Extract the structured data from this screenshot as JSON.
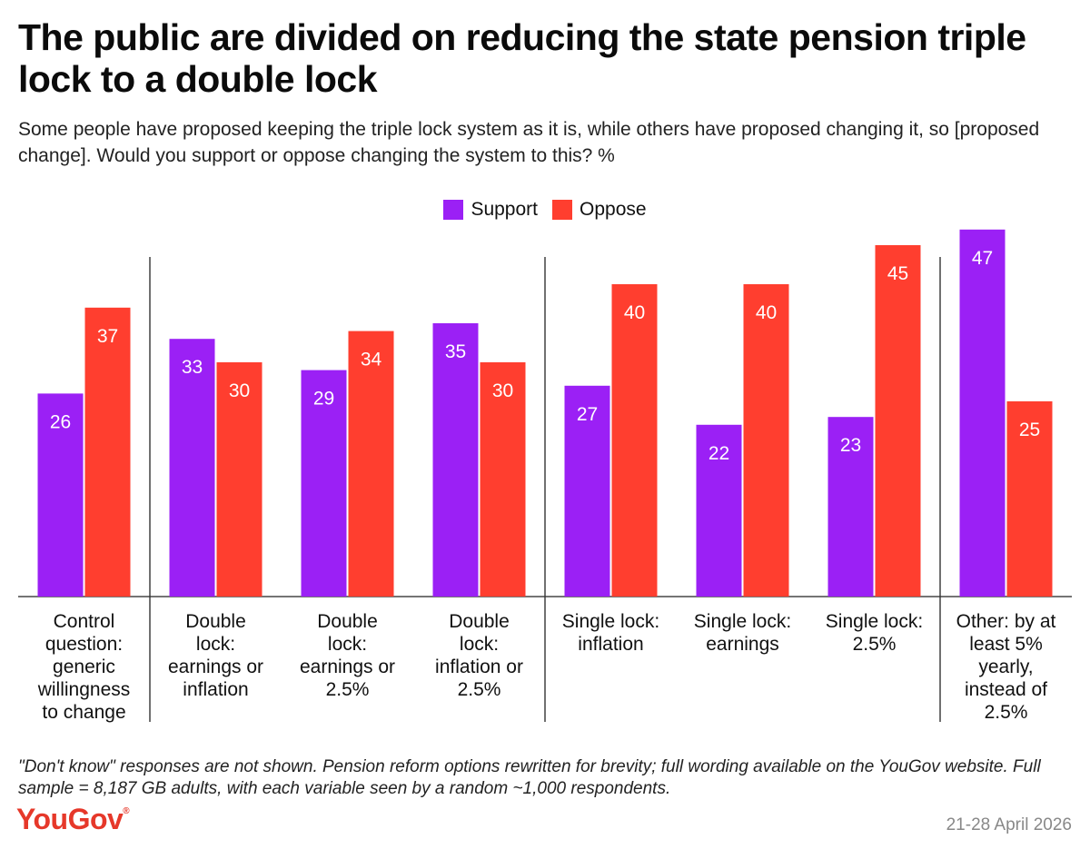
{
  "title": "The public are divided on reducing the state pension triple lock to a double lock",
  "subtitle": "Some people have proposed keeping the triple lock system as it is, while others have proposed changing it, so [proposed change]. Would you support or oppose changing the system to this? %",
  "footnote": "\"Don't know\" responses are not shown. Pension reform options rewritten for brevity; full wording available on the YouGov website. Full sample = 8,187 GB adults, with each variable seen by a random ~1,000 respondents.",
  "brand": "YouGov",
  "date": "21-28 April 2026",
  "colors": {
    "support": "#9b20f5",
    "oppose": "#ff3e2f"
  },
  "chart_data": {
    "type": "bar",
    "categories": [
      [
        "Control",
        "question:",
        "generic",
        "willingness",
        "to change"
      ],
      [
        "Double",
        "lock:",
        "earnings or",
        "inflation"
      ],
      [
        "Double",
        "lock:",
        "earnings or",
        "2.5%"
      ],
      [
        "Double",
        "lock:",
        "inflation or",
        "2.5%"
      ],
      [
        "Single lock:",
        "inflation"
      ],
      [
        "Single lock:",
        "earnings"
      ],
      [
        "Single lock:",
        "2.5%"
      ],
      [
        "Other: by at",
        "least 5%",
        "yearly,",
        "instead of",
        "2.5%"
      ]
    ],
    "series": [
      {
        "name": "Support",
        "values": [
          26,
          33,
          29,
          35,
          27,
          22,
          23,
          47
        ]
      },
      {
        "name": "Oppose",
        "values": [
          37,
          30,
          34,
          30,
          40,
          40,
          45,
          25
        ]
      }
    ],
    "group_dividers_after": [
      0,
      3,
      6
    ],
    "ylim": [
      0,
      50
    ],
    "legend": "top-center",
    "grid": false
  }
}
